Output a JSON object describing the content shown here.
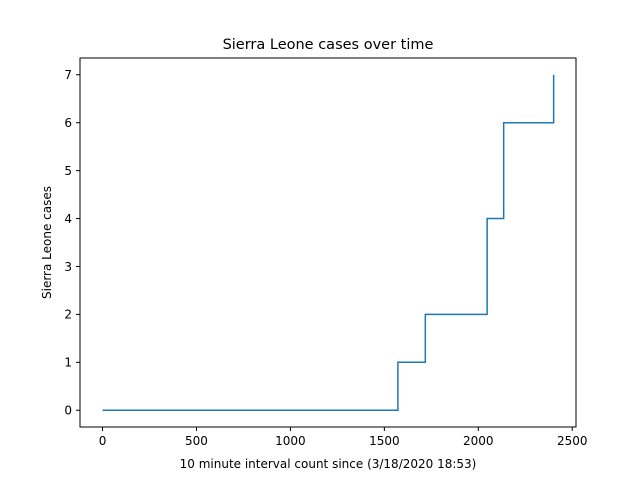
{
  "chart_data": {
    "type": "line",
    "drawstyle": "steps-post",
    "title": "Sierra Leone cases over time",
    "xlabel": "10 minute interval count since (3/18/2020 18:53)",
    "ylabel": "Sierra Leone cases",
    "xlim": [
      -120,
      2520
    ],
    "ylim": [
      -0.35,
      7.35
    ],
    "xticks": [
      0,
      500,
      1000,
      1500,
      2000,
      2500
    ],
    "yticks": [
      0,
      1,
      2,
      3,
      4,
      5,
      6,
      7
    ],
    "grid": false,
    "colors": {
      "line": "#1f77b4",
      "axes": "#000000",
      "background": "#ffffff"
    },
    "series": [
      {
        "name": "Sierra Leone cases",
        "x": [
          0,
          1572,
          1718,
          2047,
          2135,
          2401
        ],
        "y": [
          0,
          1,
          2,
          4,
          6,
          7
        ]
      }
    ]
  }
}
